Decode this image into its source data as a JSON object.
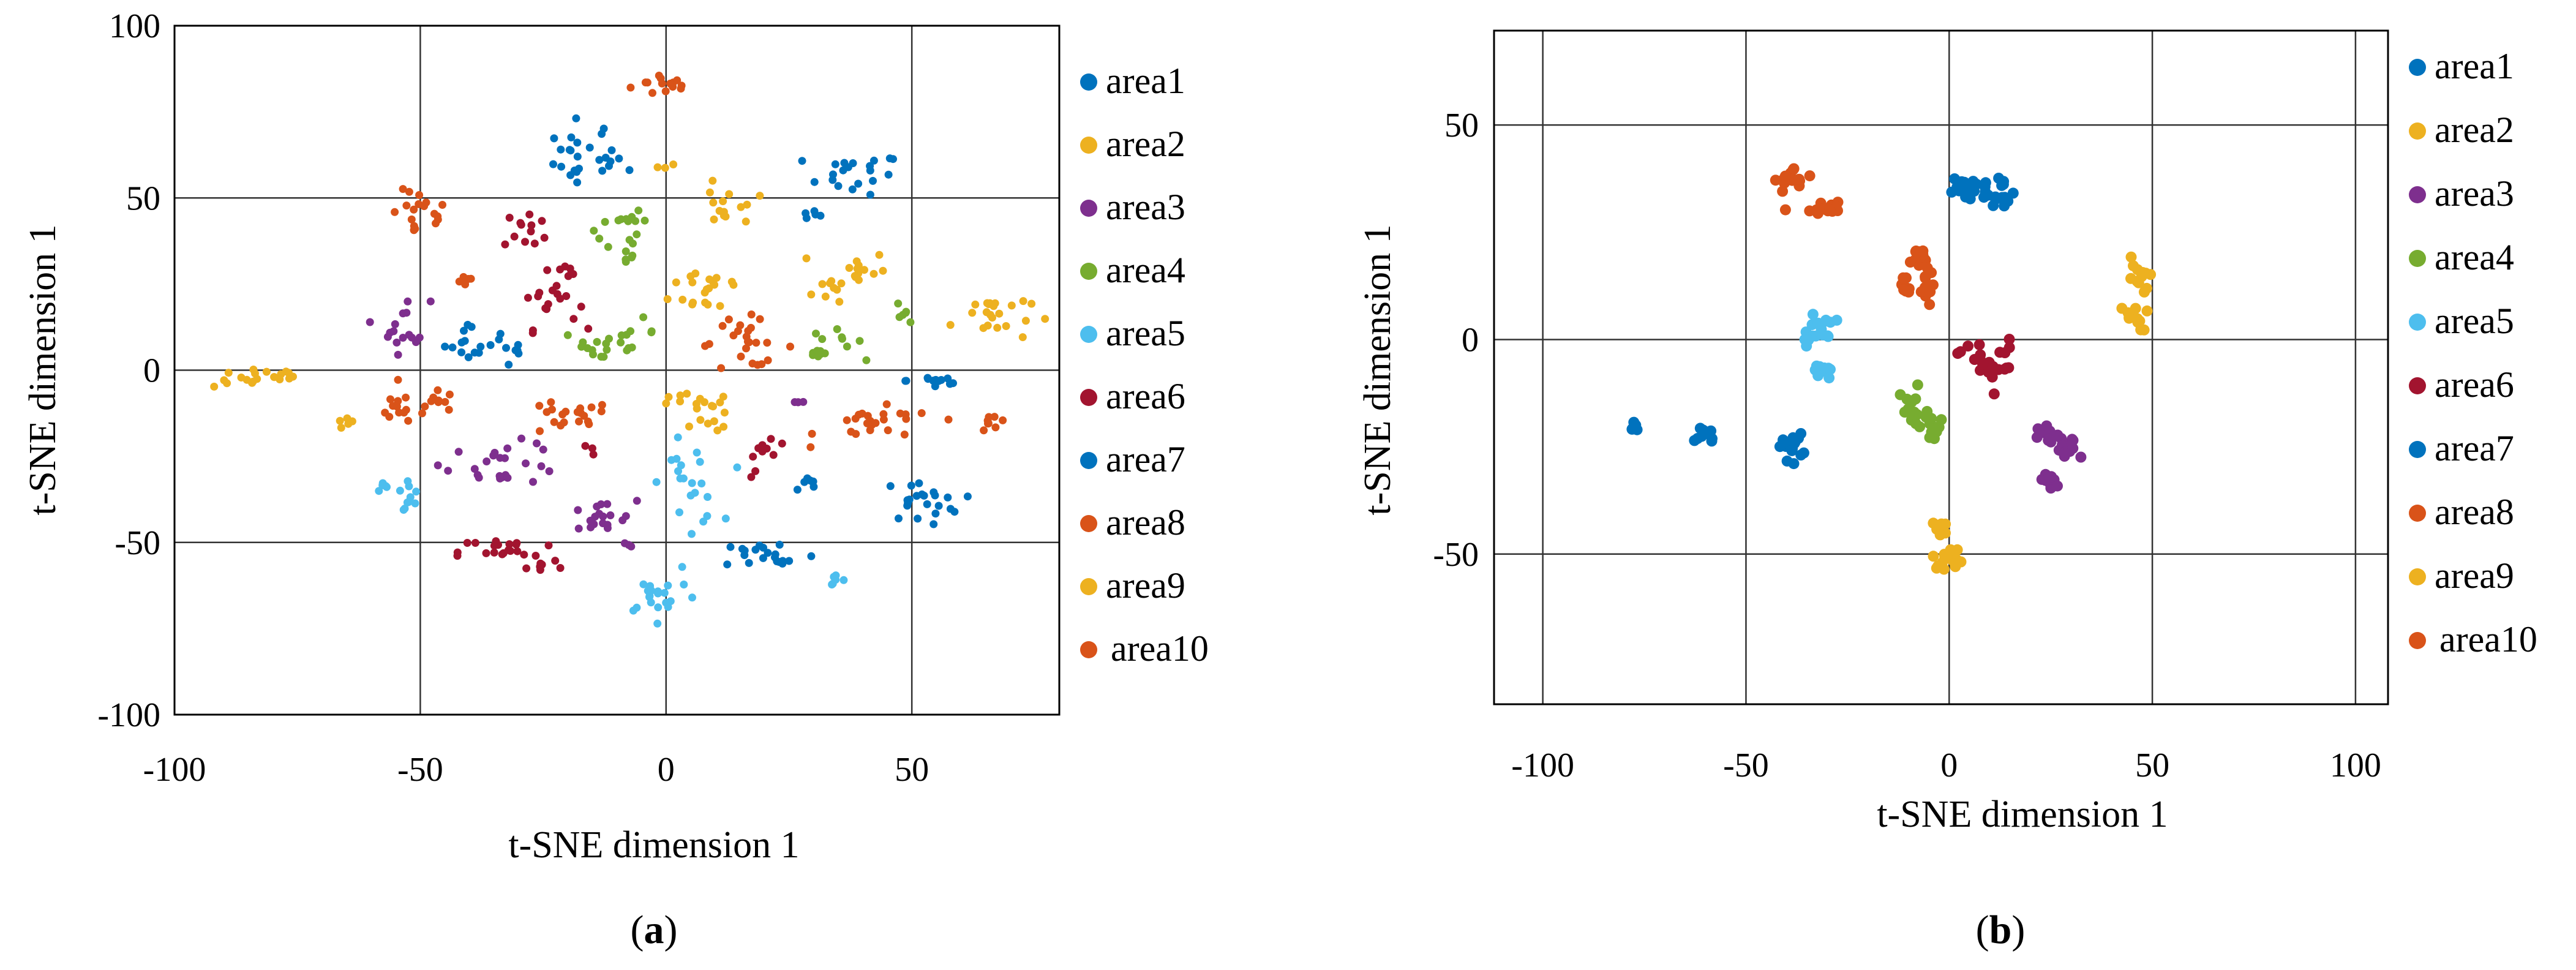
{
  "colors": {
    "area1": "#0072BD",
    "area2": "#EDB120",
    "area3": "#7E2F8E",
    "area4": "#77AC30",
    "area5": "#4DBEEE",
    "area6": "#A2142F",
    "area7": "#0072BD",
    "area8": "#D95319",
    "area9": "#EDB120",
    "area10": "#D95319"
  },
  "chart_data": [
    {
      "type": "scatter",
      "caption_letter": "a",
      "xlabel": "t-SNE dimension 1",
      "ylabel": "t-SNE dimension 1",
      "xlim": [
        -100,
        80
      ],
      "ylim": [
        -100,
        100
      ],
      "xticks": [
        -100,
        -50,
        0,
        50
      ],
      "yticks": [
        100,
        50,
        0,
        -50,
        -100
      ],
      "xtick_labels": [
        "-100",
        "-50",
        "0",
        "50"
      ],
      "ytick_labels": [
        "100",
        "50",
        "0",
        "-50",
        "-100"
      ],
      "grid": true,
      "legend_position": "right",
      "legend": [
        "area1",
        "area2",
        "area3",
        "area4",
        "area5",
        "area6",
        "area7",
        "area8",
        "area9",
        "area10"
      ],
      "clusters": [
        {
          "series": "area10",
          "x": 0,
          "y": 83,
          "n": 14,
          "sx": 3.5,
          "sy": 1.8
        },
        {
          "series": "area7",
          "x": -17,
          "y": 65,
          "n": 12,
          "sx": 3.5,
          "sy": 4
        },
        {
          "series": "area7",
          "x": -14,
          "y": 60,
          "n": 14,
          "sx": 4.5,
          "sy": 2.5
        },
        {
          "series": "area2",
          "x": 0,
          "y": 59,
          "n": 3,
          "sx": 1,
          "sy": 0.5
        },
        {
          "series": "area1",
          "x": 38,
          "y": 57,
          "n": 20,
          "sx": 5,
          "sy": 3
        },
        {
          "series": "area1",
          "x": 30,
          "y": 45,
          "n": 5,
          "sx": 1.5,
          "sy": 0.7
        },
        {
          "series": "area2",
          "x": 12,
          "y": 50,
          "n": 8,
          "sx": 4,
          "sy": 2
        },
        {
          "series": "area2",
          "x": 12,
          "y": 44,
          "n": 6,
          "sx": 2,
          "sy": 1.5
        },
        {
          "series": "area8",
          "x": -50,
          "y": 45,
          "n": 18,
          "sx": 3,
          "sy": 3.5
        },
        {
          "series": "area6",
          "x": -28,
          "y": 41,
          "n": 12,
          "sx": 2.5,
          "sy": 3
        },
        {
          "series": "area4",
          "x": -10,
          "y": 44,
          "n": 10,
          "sx": 3,
          "sy": 2.5
        },
        {
          "series": "area4",
          "x": -9,
          "y": 35,
          "n": 10,
          "sx": 2,
          "sy": 3
        },
        {
          "series": "area6",
          "x": -20,
          "y": 29,
          "n": 5,
          "sx": 1.5,
          "sy": 1
        },
        {
          "series": "area8",
          "x": -41,
          "y": 26,
          "n": 5,
          "sx": 1,
          "sy": 1
        },
        {
          "series": "area2",
          "x": 9,
          "y": 24,
          "n": 20,
          "sx": 4,
          "sy": 4
        },
        {
          "series": "area2",
          "x": 39,
          "y": 29,
          "n": 14,
          "sx": 3,
          "sy": 3
        },
        {
          "series": "area2",
          "x": 33,
          "y": 24,
          "n": 8,
          "sx": 2.5,
          "sy": 2
        },
        {
          "series": "area6",
          "x": -24,
          "y": 20,
          "n": 18,
          "sx": 3,
          "sy": 4
        },
        {
          "series": "area4",
          "x": 49,
          "y": 17,
          "n": 6,
          "sx": 1,
          "sy": 2
        },
        {
          "series": "area2",
          "x": 66,
          "y": 16,
          "n": 22,
          "sx": 4,
          "sy": 4
        },
        {
          "series": "area3",
          "x": -53,
          "y": 13,
          "n": 16,
          "sx": 2.5,
          "sy": 4
        },
        {
          "series": "area7",
          "x": -39,
          "y": 8,
          "n": 15,
          "sx": 3,
          "sy": 3
        },
        {
          "series": "area7",
          "x": -31,
          "y": 5,
          "n": 6,
          "sx": 1,
          "sy": 1
        },
        {
          "series": "area4",
          "x": -13,
          "y": 7,
          "n": 14,
          "sx": 4,
          "sy": 2.5
        },
        {
          "series": "area4",
          "x": -7,
          "y": 11,
          "n": 8,
          "sx": 2.5,
          "sy": 2
        },
        {
          "series": "area8",
          "x": 16,
          "y": 8,
          "n": 24,
          "sx": 5,
          "sy": 3.5
        },
        {
          "series": "area4",
          "x": 34,
          "y": 8,
          "n": 10,
          "sx": 3,
          "sy": 2
        },
        {
          "series": "area4",
          "x": 31,
          "y": 4,
          "n": 5,
          "sx": 2,
          "sy": 1
        },
        {
          "series": "area2",
          "x": -82,
          "y": -2,
          "n": 22,
          "sx": 5,
          "sy": 1.5
        },
        {
          "series": "area1",
          "x": 55,
          "y": -3,
          "n": 12,
          "sx": 3,
          "sy": 1.5
        },
        {
          "series": "area8",
          "x": -53,
          "y": -11,
          "n": 14,
          "sx": 3.5,
          "sy": 2.5
        },
        {
          "series": "area8",
          "x": -46,
          "y": -9,
          "n": 8,
          "sx": 2,
          "sy": 1.5
        },
        {
          "series": "area8",
          "x": -21,
          "y": -14,
          "n": 20,
          "sx": 5,
          "sy": 2.5
        },
        {
          "series": "area2",
          "x": 6,
          "y": -10,
          "n": 14,
          "sx": 4,
          "sy": 1.5
        },
        {
          "series": "area2",
          "x": 10,
          "y": -15,
          "n": 6,
          "sx": 2,
          "sy": 1.5
        },
        {
          "series": "area3",
          "x": 27,
          "y": -9,
          "n": 4,
          "sx": 0.8,
          "sy": 0.8
        },
        {
          "series": "area8",
          "x": 43,
          "y": -16,
          "n": 24,
          "sx": 6,
          "sy": 2.5
        },
        {
          "series": "area8",
          "x": 67,
          "y": -15,
          "n": 8,
          "sx": 1.5,
          "sy": 2.5
        },
        {
          "series": "area2",
          "x": -65,
          "y": -15,
          "n": 5,
          "sx": 1,
          "sy": 1
        },
        {
          "series": "area6",
          "x": -15,
          "y": -23,
          "n": 3,
          "sx": 0.5,
          "sy": 1
        },
        {
          "series": "area3",
          "x": -33,
          "y": -27,
          "n": 24,
          "sx": 6,
          "sy": 3
        },
        {
          "series": "area6",
          "x": 21,
          "y": -22,
          "n": 9,
          "sx": 2,
          "sy": 1.5
        },
        {
          "series": "area6",
          "x": 18,
          "y": -30,
          "n": 2,
          "sx": 0.5,
          "sy": 0.5
        },
        {
          "series": "area5",
          "x": -57,
          "y": -34,
          "n": 5,
          "sx": 1,
          "sy": 0.8
        },
        {
          "series": "area5",
          "x": -53,
          "y": -37,
          "n": 10,
          "sx": 1.5,
          "sy": 3
        },
        {
          "series": "area5",
          "x": 5,
          "y": -33,
          "n": 22,
          "sx": 3,
          "sy": 6
        },
        {
          "series": "area7",
          "x": 28,
          "y": -33,
          "n": 7,
          "sx": 1.5,
          "sy": 1.5
        },
        {
          "series": "area7",
          "x": 52,
          "y": -38,
          "n": 22,
          "sx": 4,
          "sy": 3
        },
        {
          "series": "area3",
          "x": -14,
          "y": -43,
          "n": 18,
          "sx": 4,
          "sy": 2.5
        },
        {
          "series": "area3",
          "x": -8,
          "y": -51,
          "n": 3,
          "sx": 1,
          "sy": 0.5
        },
        {
          "series": "area6",
          "x": -32,
          "y": -53,
          "n": 22,
          "sx": 5,
          "sy": 2.5
        },
        {
          "series": "area6",
          "x": -25,
          "y": -57,
          "n": 6,
          "sx": 2,
          "sy": 1
        },
        {
          "series": "area7",
          "x": 21,
          "y": -54,
          "n": 20,
          "sx": 5,
          "sy": 2.5
        },
        {
          "series": "area5",
          "x": 34,
          "y": -60,
          "n": 6,
          "sx": 1,
          "sy": 1.5
        },
        {
          "series": "area5",
          "x": -1,
          "y": -65,
          "n": 20,
          "sx": 4,
          "sy": 3
        }
      ]
    },
    {
      "type": "scatter",
      "caption_letter": "b",
      "xlabel": "t-SNE dimension 1",
      "ylabel": "t-SNE dimension 1",
      "xlim": [
        -112,
        108
      ],
      "ylim": [
        -85,
        72
      ],
      "xticks": [
        -100,
        -50,
        0,
        50,
        100
      ],
      "yticks": [
        50,
        0,
        -50
      ],
      "xtick_labels": [
        "-100",
        "-50",
        "0",
        "50",
        "100"
      ],
      "ytick_labels": [
        "50",
        "0",
        "-50"
      ],
      "grid": true,
      "legend_position": "right",
      "legend": [
        "area1",
        "area2",
        "area3",
        "area4",
        "area5",
        "area6",
        "area7",
        "area8",
        "area9",
        "area10"
      ],
      "clusters": [
        {
          "series": "area8",
          "x": -38,
          "y": 37,
          "n": 14,
          "sx": 2.5,
          "sy": 1.5
        },
        {
          "series": "area8",
          "x": -33,
          "y": 30,
          "n": 10,
          "sx": 2.5,
          "sy": 1
        },
        {
          "series": "area8",
          "x": -29,
          "y": 31,
          "n": 8,
          "sx": 1,
          "sy": 1
        },
        {
          "series": "area1",
          "x": 4,
          "y": 36,
          "n": 12,
          "sx": 2,
          "sy": 1
        },
        {
          "series": "area1",
          "x": 9,
          "y": 35,
          "n": 12,
          "sx": 2,
          "sy": 1.5
        },
        {
          "series": "area1",
          "x": 13,
          "y": 35,
          "n": 12,
          "sx": 1.5,
          "sy": 2
        },
        {
          "series": "area8",
          "x": -8,
          "y": 19,
          "n": 12,
          "sx": 1.5,
          "sy": 1.5
        },
        {
          "series": "area8",
          "x": -11,
          "y": 13,
          "n": 10,
          "sx": 1,
          "sy": 2
        },
        {
          "series": "area8",
          "x": -6,
          "y": 12,
          "n": 10,
          "sx": 1,
          "sy": 2
        },
        {
          "series": "area2",
          "x": 46,
          "y": 14,
          "n": 12,
          "sx": 1.5,
          "sy": 3
        },
        {
          "series": "area2",
          "x": 45,
          "y": 5,
          "n": 12,
          "sx": 2,
          "sy": 1.5
        },
        {
          "series": "area5",
          "x": -31,
          "y": 3,
          "n": 12,
          "sx": 1.5,
          "sy": 1.5
        },
        {
          "series": "area5",
          "x": -35,
          "y": 0,
          "n": 6,
          "sx": 1,
          "sy": 1
        },
        {
          "series": "area5",
          "x": -31,
          "y": -7,
          "n": 10,
          "sx": 1,
          "sy": 1.5
        },
        {
          "series": "area6",
          "x": 6,
          "y": -4,
          "n": 10,
          "sx": 2,
          "sy": 2
        },
        {
          "series": "area6",
          "x": 12,
          "y": -6,
          "n": 14,
          "sx": 2,
          "sy": 3
        },
        {
          "series": "area4",
          "x": -9,
          "y": -17,
          "n": 16,
          "sx": 1.5,
          "sy": 3
        },
        {
          "series": "area4",
          "x": -4,
          "y": -20,
          "n": 12,
          "sx": 1.5,
          "sy": 2
        },
        {
          "series": "area3",
          "x": 25,
          "y": -23,
          "n": 12,
          "sx": 1.5,
          "sy": 1.5
        },
        {
          "series": "area3",
          "x": 29,
          "y": -26,
          "n": 12,
          "sx": 1.5,
          "sy": 1.5
        },
        {
          "series": "area3",
          "x": 25,
          "y": -33,
          "n": 10,
          "sx": 1.5,
          "sy": 1
        },
        {
          "series": "area7",
          "x": -77,
          "y": -20,
          "n": 8,
          "sx": 1,
          "sy": 1
        },
        {
          "series": "area7",
          "x": -60,
          "y": -22,
          "n": 10,
          "sx": 1.2,
          "sy": 1.2
        },
        {
          "series": "area7",
          "x": -39,
          "y": -25,
          "n": 16,
          "sx": 1.5,
          "sy": 1.5
        },
        {
          "series": "area9",
          "x": -2,
          "y": -44,
          "n": 8,
          "sx": 1,
          "sy": 1
        },
        {
          "series": "area9",
          "x": 0,
          "y": -51,
          "n": 14,
          "sx": 2,
          "sy": 1.2
        }
      ]
    }
  ]
}
